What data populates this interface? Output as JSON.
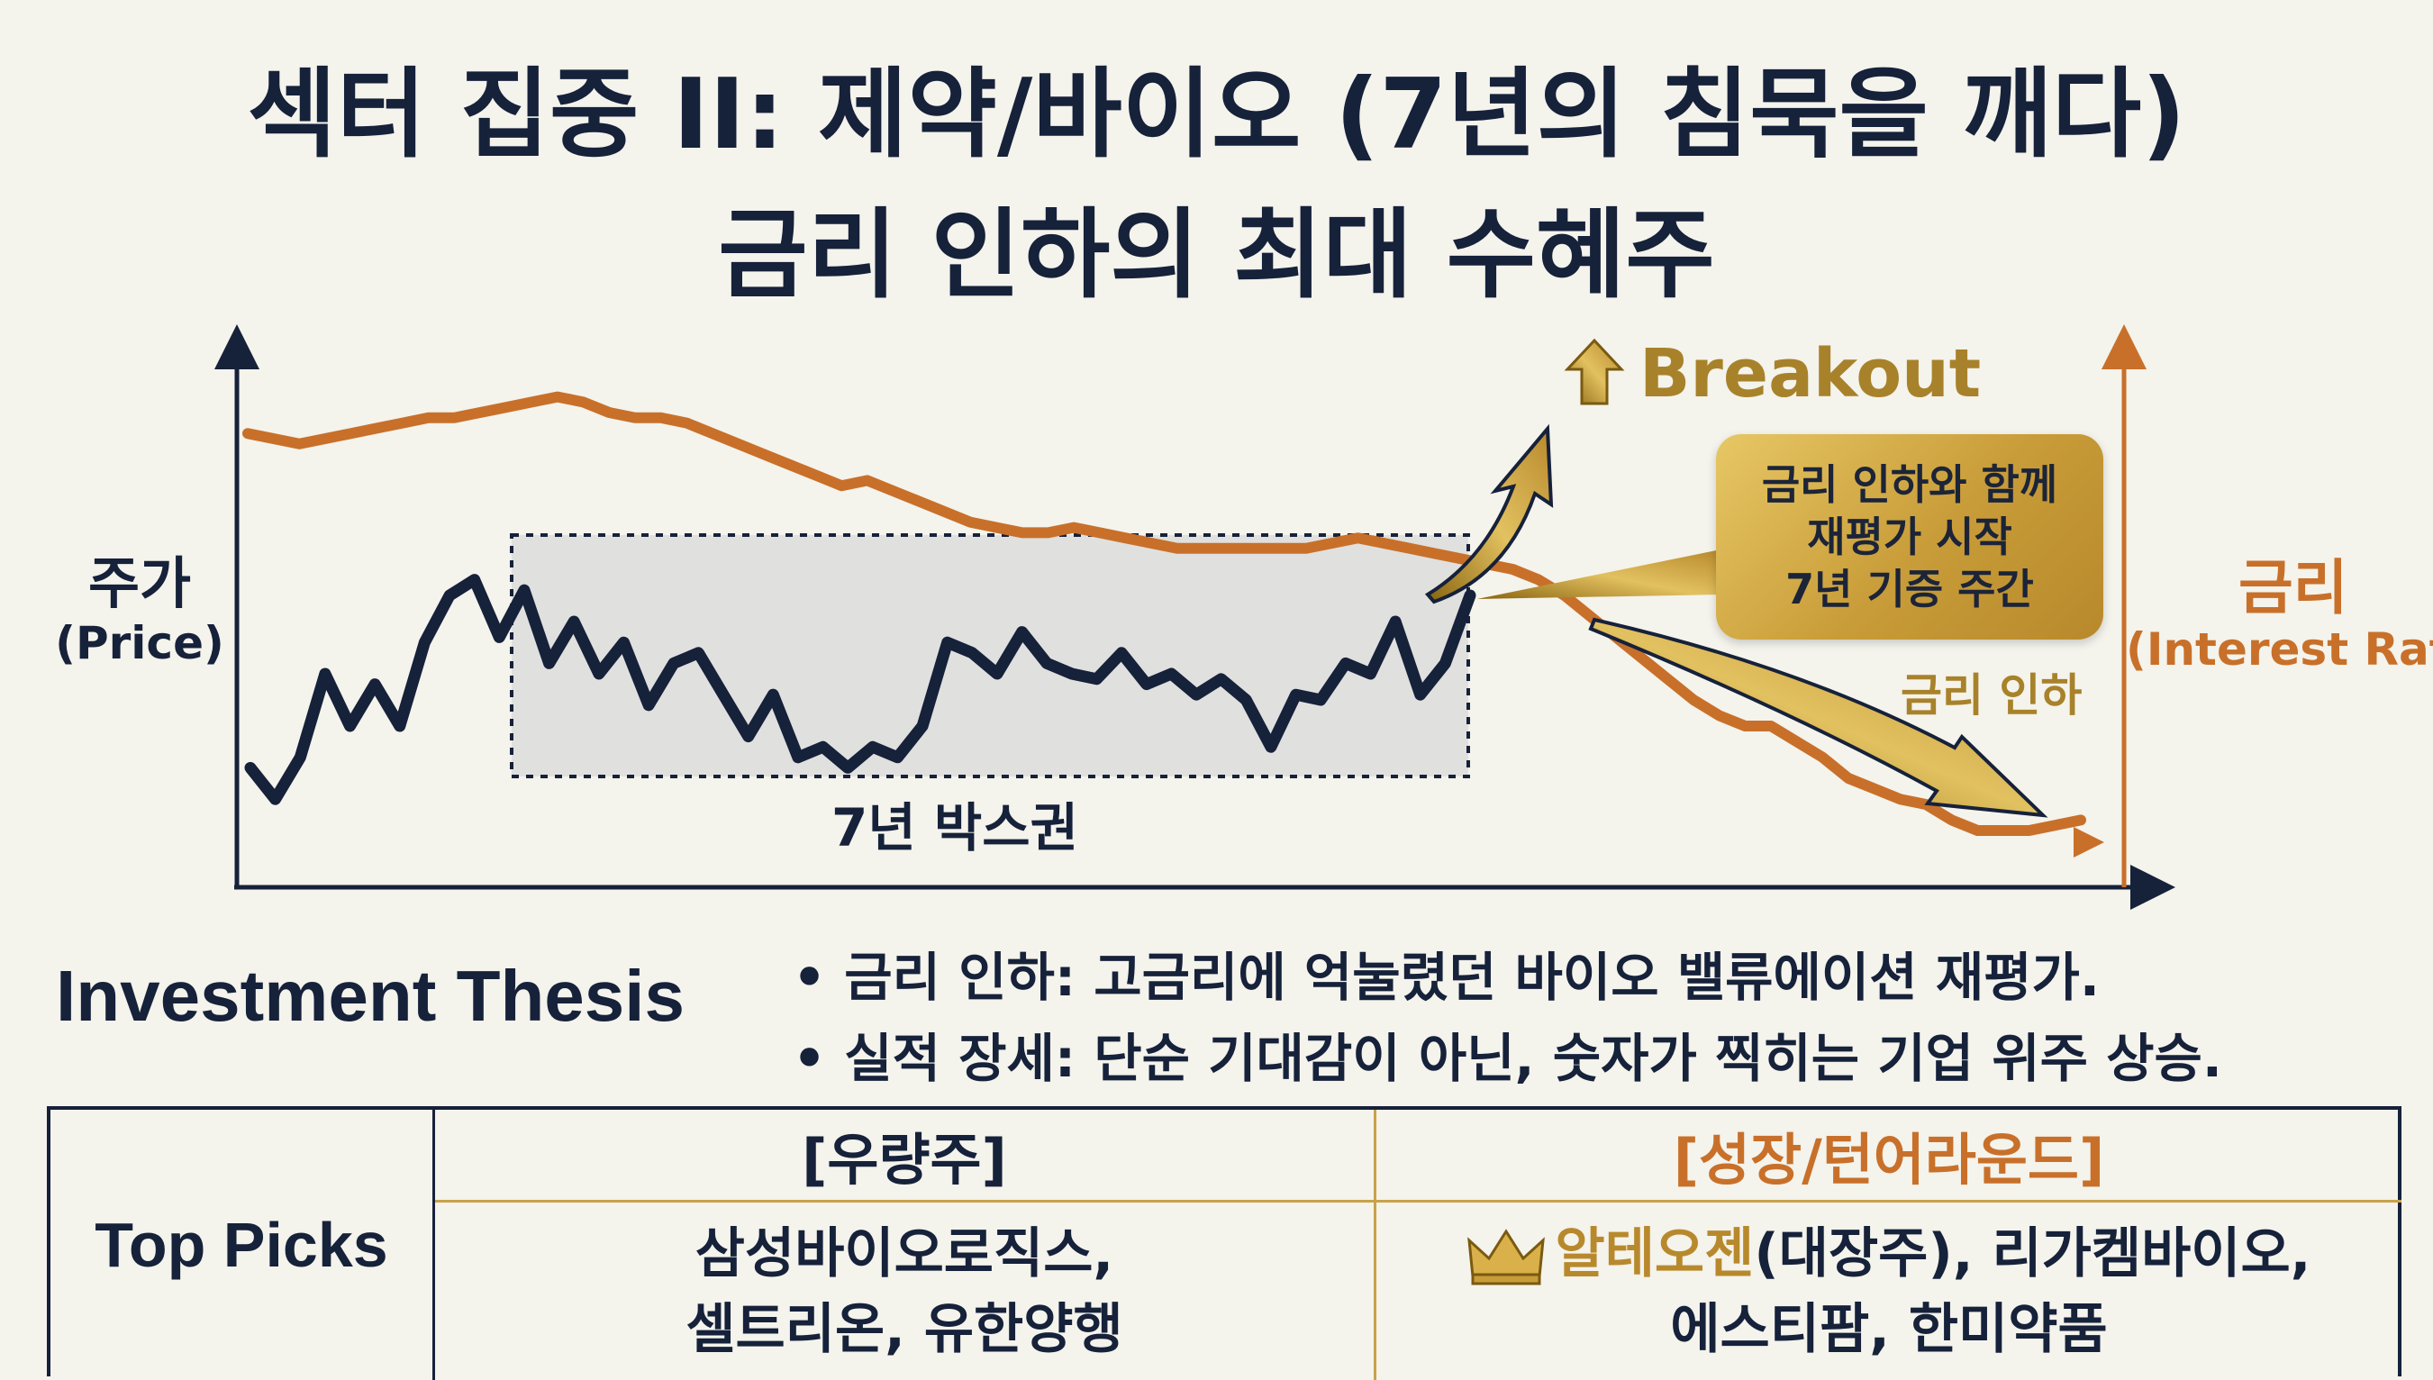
{
  "title": {
    "line1": "섹터 집중 II: 제약/바이오 (7년의 침묵을 깨다)",
    "line2": "금리 인하의 최대 수혜주"
  },
  "chart_data": {
    "type": "line",
    "series": [
      {
        "name": "주가",
        "label_sub": "(Price)",
        "color": "#16213a",
        "values": [
          22,
          16,
          24,
          40,
          30,
          38,
          30,
          46,
          55,
          58,
          47,
          56,
          42,
          50,
          40,
          46,
          34,
          42,
          44,
          36,
          28,
          36,
          24,
          26,
          22,
          26,
          24,
          30,
          46,
          44,
          40,
          48,
          42,
          40,
          39,
          44,
          38,
          40,
          36,
          39,
          35,
          26,
          36,
          35,
          42,
          40,
          50,
          36,
          42,
          55
        ]
      },
      {
        "name": "금리",
        "label_sub": "(Interest Rate)",
        "color": "#c8702a",
        "values": [
          86,
          85,
          84,
          85,
          86,
          87,
          88,
          89,
          89,
          90,
          91,
          92,
          93,
          92,
          90,
          89,
          89,
          88,
          86,
          84,
          82,
          80,
          78,
          76,
          77,
          75,
          73,
          71,
          69,
          68,
          67,
          67,
          68,
          67,
          66,
          65,
          64,
          64,
          64,
          64,
          64,
          64,
          65,
          66,
          65,
          64,
          63,
          62,
          61,
          60,
          58,
          55,
          51,
          47,
          43,
          39,
          35,
          32,
          30,
          30,
          27,
          24,
          20,
          18,
          16,
          15,
          12,
          10,
          10,
          10,
          11,
          12
        ]
      }
    ],
    "ylim": [
      0,
      100
    ],
    "annotations": {
      "box_label": "7년 박스권",
      "breakout": "Breakout",
      "callout_lines": [
        "금리 인하와 함께",
        "재평가 시작",
        "7년 기증 주간"
      ],
      "cut_label": "금리 인하"
    },
    "y_left_label": "주가",
    "y_right_label": "금리"
  },
  "thesis": {
    "title": "Investment Thesis",
    "points": [
      "금리 인하: 고금리에 억눌렸던 바이오 밸류에이션 재평가.",
      "실적 장세: 단순 기대감이 아닌, 숫자가 찍히는 기업 위주 상승."
    ]
  },
  "picks": {
    "label": "Top Picks",
    "value_header": "[우량주]",
    "growth_header": "[성장/턴어라운드]",
    "value_lines": [
      "삼성바이오로직스,",
      "셀트리온, 유한양행"
    ],
    "growth_lead": "알테오젠",
    "growth_lead_rest": "(대장주), 리가켐바이오,",
    "growth_line2": "에스티팜, 한미약품",
    "crown_icon": "crown-icon"
  }
}
